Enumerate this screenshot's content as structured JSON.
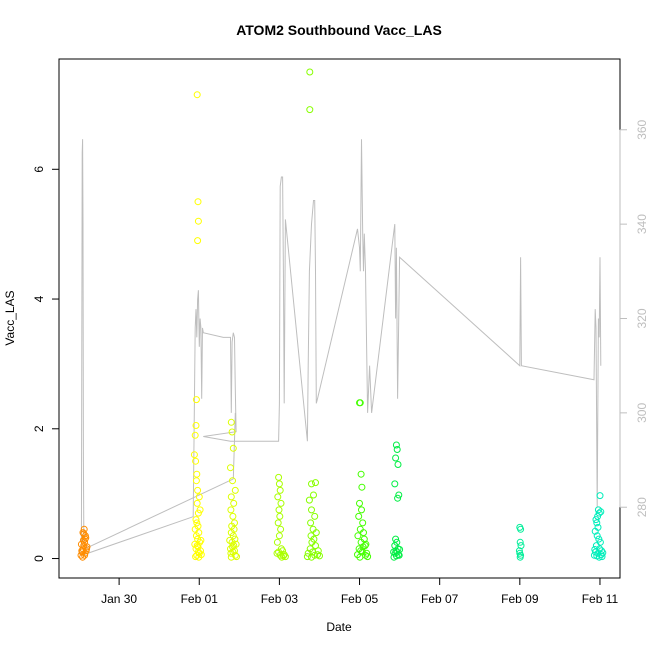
{
  "chart_data": {
    "type": "scatter",
    "title": "ATOM2 Southbound Vacc_LAS",
    "xlabel": "Date",
    "ylabel": "Vacc_LAS",
    "x_unit": "days (Jan 29 = 0)",
    "x_ticks": [
      {
        "label": "Jan 30",
        "value": 1
      },
      {
        "label": "Feb 01",
        "value": 3
      },
      {
        "label": "Feb 03",
        "value": 5
      },
      {
        "label": "Feb 05",
        "value": 7
      },
      {
        "label": "Feb 07",
        "value": 9
      },
      {
        "label": "Feb 09",
        "value": 11
      },
      {
        "label": "Feb 11",
        "value": 13
      }
    ],
    "xlim": [
      -0.5,
      13.5
    ],
    "ylim": [
      -0.3,
      7.7
    ],
    "y_ticks": [
      0,
      2,
      4,
      6
    ],
    "y2_ticks": [
      280,
      300,
      320,
      340,
      360
    ],
    "y2lim": [
      265,
      375
    ],
    "grid": false,
    "series": [
      {
        "color": "#FF8C00",
        "points": [
          [
            0.05,
            0.05
          ],
          [
            0.08,
            0.1
          ],
          [
            0.1,
            0.15
          ],
          [
            0.12,
            0.2
          ],
          [
            0.14,
            0.25
          ],
          [
            0.15,
            0.3
          ],
          [
            0.16,
            0.35
          ],
          [
            0.1,
            0.4
          ],
          [
            0.13,
            0.45
          ],
          [
            0.15,
            0.08
          ],
          [
            0.18,
            0.12
          ],
          [
            0.2,
            0.18
          ],
          [
            0.06,
            0.22
          ],
          [
            0.11,
            0.28
          ],
          [
            0.17,
            0.32
          ],
          [
            0.09,
            0.02
          ],
          [
            0.19,
            0.15
          ],
          [
            0.07,
            0.12
          ],
          [
            0.14,
            0.05
          ],
          [
            0.12,
            0.38
          ]
        ]
      },
      {
        "color": "#FFFF00",
        "points": [
          [
            2.95,
            7.15
          ],
          [
            2.97,
            5.5
          ],
          [
            2.98,
            5.2
          ],
          [
            2.96,
            4.9
          ],
          [
            2.93,
            2.45
          ],
          [
            2.92,
            2.05
          ],
          [
            2.9,
            1.9
          ],
          [
            2.88,
            1.6
          ],
          [
            2.91,
            1.5
          ],
          [
            2.94,
            1.3
          ],
          [
            2.93,
            1.2
          ],
          [
            2.96,
            1.05
          ],
          [
            3.0,
            0.95
          ],
          [
            2.95,
            0.85
          ],
          [
            3.02,
            0.75
          ],
          [
            2.98,
            0.7
          ],
          [
            2.92,
            0.6
          ],
          [
            2.94,
            0.55
          ],
          [
            2.97,
            0.5
          ],
          [
            2.9,
            0.45
          ],
          [
            2.99,
            0.4
          ],
          [
            2.93,
            0.35
          ],
          [
            2.96,
            0.3
          ],
          [
            3.01,
            0.25
          ],
          [
            2.95,
            0.2
          ],
          [
            2.92,
            0.15
          ],
          [
            2.98,
            0.1
          ],
          [
            2.94,
            0.05
          ],
          [
            3.0,
            0.08
          ],
          [
            2.91,
            0.03
          ],
          [
            2.97,
            0.18
          ],
          [
            3.03,
            0.12
          ],
          [
            2.89,
            0.22
          ],
          [
            3.04,
            0.28
          ],
          [
            2.99,
            0.02
          ],
          [
            3.05,
            0.06
          ]
        ]
      },
      {
        "color": "#DDFF00",
        "points": [
          [
            3.8,
            2.1
          ],
          [
            3.82,
            1.95
          ],
          [
            3.85,
            1.7
          ],
          [
            3.78,
            1.4
          ],
          [
            3.83,
            1.2
          ],
          [
            3.9,
            1.05
          ],
          [
            3.8,
            0.95
          ],
          [
            3.86,
            0.85
          ],
          [
            3.79,
            0.75
          ],
          [
            3.84,
            0.65
          ],
          [
            3.88,
            0.55
          ],
          [
            3.81,
            0.5
          ],
          [
            3.87,
            0.45
          ],
          [
            3.8,
            0.4
          ],
          [
            3.85,
            0.35
          ],
          [
            3.89,
            0.3
          ],
          [
            3.82,
            0.25
          ],
          [
            3.86,
            0.2
          ],
          [
            3.78,
            0.15
          ],
          [
            3.84,
            0.1
          ],
          [
            3.9,
            0.05
          ],
          [
            3.8,
            0.02
          ],
          [
            3.88,
            0.12
          ],
          [
            3.83,
            0.18
          ],
          [
            3.79,
            0.08
          ],
          [
            3.92,
            0.22
          ],
          [
            3.76,
            0.28
          ],
          [
            3.93,
            0.03
          ]
        ]
      },
      {
        "color": "#AAFF00",
        "points": [
          [
            4.98,
            1.25
          ],
          [
            5.0,
            1.15
          ],
          [
            5.02,
            1.05
          ],
          [
            4.96,
            0.95
          ],
          [
            5.04,
            0.85
          ],
          [
            4.99,
            0.75
          ],
          [
            5.01,
            0.65
          ],
          [
            4.97,
            0.55
          ],
          [
            5.03,
            0.45
          ],
          [
            5.0,
            0.35
          ],
          [
            4.95,
            0.25
          ],
          [
            5.05,
            0.15
          ],
          [
            4.98,
            0.1
          ],
          [
            5.02,
            0.05
          ],
          [
            5.06,
            0.02
          ],
          [
            4.94,
            0.08
          ],
          [
            5.08,
            0.12
          ],
          [
            5.1,
            0.04
          ],
          [
            5.12,
            0.06
          ],
          [
            5.15,
            0.03
          ]
        ]
      },
      {
        "color": "#88FF00",
        "points": [
          [
            5.76,
            7.5
          ],
          [
            5.76,
            6.92
          ],
          [
            5.8,
            1.15
          ],
          [
            5.9,
            1.17
          ],
          [
            5.85,
            0.98
          ],
          [
            5.75,
            0.9
          ],
          [
            5.8,
            0.75
          ],
          [
            5.88,
            0.65
          ],
          [
            5.78,
            0.55
          ],
          [
            5.84,
            0.45
          ],
          [
            5.92,
            0.4
          ],
          [
            5.79,
            0.35
          ],
          [
            5.86,
            0.3
          ],
          [
            5.81,
            0.25
          ],
          [
            5.9,
            0.2
          ],
          [
            5.77,
            0.15
          ],
          [
            5.83,
            0.1
          ],
          [
            5.88,
            0.05
          ],
          [
            5.8,
            0.02
          ],
          [
            5.95,
            0.06
          ],
          [
            6.0,
            0.04
          ],
          [
            5.72,
            0.08
          ],
          [
            5.97,
            0.12
          ],
          [
            5.7,
            0.03
          ]
        ]
      },
      {
        "color": "#44FF00",
        "points": [
          [
            7.0,
            2.4
          ],
          [
            7.02,
            2.4
          ],
          [
            7.04,
            1.3
          ],
          [
            7.06,
            1.1
          ],
          [
            7.0,
            0.85
          ],
          [
            7.05,
            0.75
          ],
          [
            6.98,
            0.65
          ],
          [
            7.08,
            0.55
          ],
          [
            7.02,
            0.45
          ],
          [
            7.1,
            0.4
          ],
          [
            6.96,
            0.35
          ],
          [
            7.12,
            0.3
          ],
          [
            7.04,
            0.25
          ],
          [
            7.14,
            0.2
          ],
          [
            6.99,
            0.15
          ],
          [
            7.07,
            0.1
          ],
          [
            7.15,
            0.05
          ],
          [
            7.01,
            0.02
          ],
          [
            7.18,
            0.08
          ],
          [
            7.03,
            0.12
          ],
          [
            7.2,
            0.03
          ],
          [
            6.95,
            0.06
          ],
          [
            7.09,
            0.18
          ],
          [
            7.16,
            0.22
          ]
        ]
      },
      {
        "color": "#00EE44",
        "points": [
          [
            7.92,
            1.75
          ],
          [
            7.94,
            1.68
          ],
          [
            7.9,
            1.55
          ],
          [
            7.96,
            1.45
          ],
          [
            7.88,
            1.15
          ],
          [
            7.98,
            0.98
          ],
          [
            7.95,
            0.93
          ],
          [
            7.9,
            0.3
          ],
          [
            7.93,
            0.25
          ],
          [
            7.88,
            0.2
          ],
          [
            7.96,
            0.15
          ],
          [
            7.91,
            0.12
          ],
          [
            7.94,
            0.1
          ],
          [
            7.89,
            0.08
          ],
          [
            7.97,
            0.06
          ],
          [
            7.92,
            0.04
          ],
          [
            7.86,
            0.02
          ],
          [
            7.99,
            0.05
          ],
          [
            7.85,
            0.1
          ],
          [
            8.0,
            0.14
          ]
        ]
      },
      {
        "color": "#00EE99",
        "points": [
          [
            11.0,
            0.48
          ],
          [
            11.02,
            0.45
          ],
          [
            11.01,
            0.25
          ],
          [
            11.03,
            0.2
          ],
          [
            10.99,
            0.12
          ],
          [
            11.0,
            0.08
          ],
          [
            11.02,
            0.05
          ],
          [
            11.01,
            0.02
          ]
        ]
      },
      {
        "color": "#00EEBB",
        "points": [
          [
            13.0,
            0.97
          ],
          [
            12.96,
            0.75
          ],
          [
            13.02,
            0.72
          ],
          [
            12.98,
            0.7
          ],
          [
            12.94,
            0.65
          ],
          [
            12.9,
            0.6
          ],
          [
            12.92,
            0.55
          ],
          [
            12.95,
            0.48
          ],
          [
            12.88,
            0.42
          ],
          [
            12.93,
            0.35
          ],
          [
            12.97,
            0.3
          ],
          [
            13.01,
            0.25
          ],
          [
            12.91,
            0.2
          ],
          [
            12.99,
            0.15
          ],
          [
            13.04,
            0.12
          ],
          [
            12.89,
            0.1
          ],
          [
            12.95,
            0.08
          ],
          [
            13.03,
            0.06
          ],
          [
            12.92,
            0.04
          ],
          [
            12.98,
            0.02
          ],
          [
            13.05,
            0.03
          ],
          [
            12.86,
            0.05
          ],
          [
            13.07,
            0.09
          ],
          [
            12.87,
            0.14
          ]
        ]
      }
    ],
    "line_series": {
      "color": "#BEBEBE",
      "axis": "right",
      "points": [
        [
          0.0,
          270
        ],
        [
          0.03,
          271
        ],
        [
          0.06,
          272
        ],
        [
          0.08,
          355
        ],
        [
          0.09,
          358
        ],
        [
          0.1,
          340
        ],
        [
          0.11,
          290
        ],
        [
          0.12,
          275
        ],
        [
          0.14,
          270
        ],
        [
          2.85,
          278
        ],
        [
          2.88,
          302
        ],
        [
          2.9,
          318
        ],
        [
          2.92,
          322
        ],
        [
          2.94,
          316
        ],
        [
          2.96,
          324
        ],
        [
          2.98,
          326
        ],
        [
          3.0,
          314
        ],
        [
          3.02,
          320
        ],
        [
          3.04,
          318
        ],
        [
          3.06,
          303
        ],
        [
          3.08,
          318
        ],
        [
          3.1,
          317
        ],
        [
          3.6,
          316
        ],
        [
          3.78,
          316
        ],
        [
          3.8,
          300
        ],
        [
          3.82,
          315
        ],
        [
          3.85,
          317
        ],
        [
          3.88,
          316
        ],
        [
          3.9,
          305
        ],
        [
          3.92,
          296
        ],
        [
          3.1,
          295
        ],
        [
          3.78,
          294
        ],
        [
          4.98,
          294
        ],
        [
          5.0,
          302
        ],
        [
          5.02,
          348
        ],
        [
          5.05,
          350
        ],
        [
          5.08,
          350
        ],
        [
          5.1,
          330
        ],
        [
          5.12,
          302
        ],
        [
          5.15,
          341
        ],
        [
          5.7,
          294
        ],
        [
          5.72,
          310
        ],
        [
          5.75,
          330
        ],
        [
          5.8,
          340
        ],
        [
          5.85,
          345
        ],
        [
          5.88,
          345
        ],
        [
          5.9,
          330
        ],
        [
          5.92,
          302
        ],
        [
          5.95,
          303
        ],
        [
          6.95,
          339
        ],
        [
          7.0,
          335
        ],
        [
          7.02,
          330
        ],
        [
          7.05,
          358
        ],
        [
          7.08,
          338
        ],
        [
          7.1,
          330
        ],
        [
          7.12,
          338
        ],
        [
          7.15,
          330
        ],
        [
          7.2,
          300
        ],
        [
          7.25,
          310
        ],
        [
          7.3,
          300
        ],
        [
          7.85,
          338
        ],
        [
          7.88,
          340
        ],
        [
          7.9,
          320
        ],
        [
          7.92,
          335
        ],
        [
          7.95,
          303
        ],
        [
          8.0,
          333
        ],
        [
          11.0,
          310
        ],
        [
          11.02,
          333
        ],
        [
          11.04,
          310
        ],
        [
          12.85,
          307
        ],
        [
          12.88,
          322
        ],
        [
          12.9,
          318
        ],
        [
          12.93,
          280
        ],
        [
          12.96,
          320
        ],
        [
          12.98,
          316
        ],
        [
          13.0,
          333
        ],
        [
          13.02,
          310
        ]
      ],
      "polyline": [
        [
          0.1,
          271
        ],
        [
          3.85,
          286
        ],
        [
          3.85,
          286
        ],
        [
          3.9,
          300
        ]
      ]
    }
  }
}
